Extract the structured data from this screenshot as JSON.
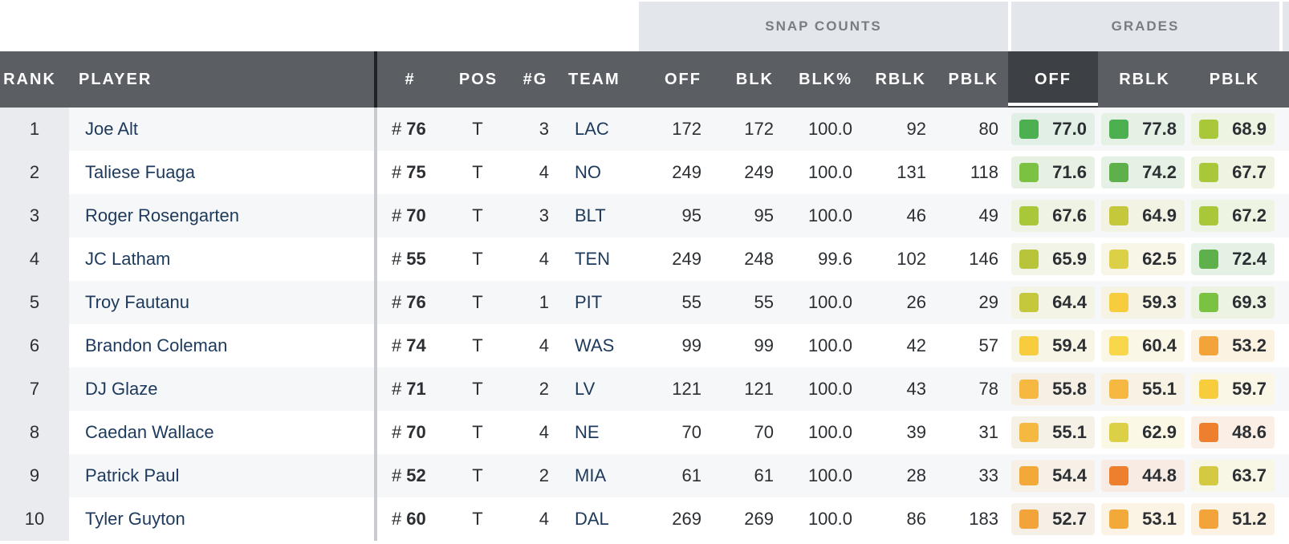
{
  "groups": {
    "snap_counts": "SNAP COUNTS",
    "grades": "GRADES"
  },
  "columns": {
    "rank": "RANK",
    "player": "PLAYER",
    "number": "#",
    "pos": "POS",
    "games": "#G",
    "team": "TEAM",
    "off": "OFF",
    "blk": "BLK",
    "blk_pct": "BLK%",
    "rblk": "RBLK",
    "pblk": "PBLK",
    "grade_off": "OFF",
    "grade_rblk": "RBLK",
    "grade_pblk": "PBLK"
  },
  "number_prefix": "#",
  "grade_colors": {
    "green_dark": "#4caf50",
    "green": "#7cc242",
    "lime": "#a8c83a",
    "olive": "#c4c83a",
    "yellow_olive": "#dcd046",
    "yellow": "#f8cd3d",
    "light_orange": "#f5b942",
    "orange": "#f2a33a",
    "deep_orange": "#ee7f2f"
  },
  "rows": [
    {
      "rank": "1",
      "player": "Joe Alt",
      "number": "76",
      "pos": "T",
      "games": "3",
      "team": "LAC",
      "off": "172",
      "blk": "172",
      "blk_pct": "100.0",
      "rblk": "92",
      "pblk": "80",
      "grades": [
        {
          "value": "77.0",
          "color": "#4caf50",
          "bg": "#e2efe6"
        },
        {
          "value": "77.8",
          "color": "#4caf50",
          "bg": "#e5f1e4"
        },
        {
          "value": "68.9",
          "color": "#a8c83a",
          "bg": "#eef4e2"
        }
      ]
    },
    {
      "rank": "2",
      "player": "Taliese Fuaga",
      "number": "75",
      "pos": "T",
      "games": "4",
      "team": "NO",
      "off": "249",
      "blk": "249",
      "blk_pct": "100.0",
      "rblk": "131",
      "pblk": "118",
      "grades": [
        {
          "value": "71.6",
          "color": "#7cc242",
          "bg": "#e6f1e4"
        },
        {
          "value": "74.2",
          "color": "#5eb14a",
          "bg": "#e5f1e4"
        },
        {
          "value": "67.7",
          "color": "#a8c83a",
          "bg": "#eff4e2"
        }
      ]
    },
    {
      "rank": "3",
      "player": "Roger Rosengarten",
      "number": "70",
      "pos": "T",
      "games": "3",
      "team": "BLT",
      "off": "95",
      "blk": "95",
      "blk_pct": "100.0",
      "rblk": "46",
      "pblk": "49",
      "grades": [
        {
          "value": "67.6",
          "color": "#a8c83a",
          "bg": "#eef3e4"
        },
        {
          "value": "64.9",
          "color": "#c4c83a",
          "bg": "#f3f3e3"
        },
        {
          "value": "67.2",
          "color": "#a8c83a",
          "bg": "#eef4e2"
        }
      ]
    },
    {
      "rank": "4",
      "player": "JC Latham",
      "number": "55",
      "pos": "T",
      "games": "4",
      "team": "TEN",
      "off": "249",
      "blk": "248",
      "blk_pct": "99.6",
      "rblk": "102",
      "pblk": "146",
      "grades": [
        {
          "value": "65.9",
          "color": "#b8c43a",
          "bg": "#f1f4e6"
        },
        {
          "value": "62.5",
          "color": "#dcd046",
          "bg": "#f8f6e6"
        },
        {
          "value": "72.4",
          "color": "#5eb14a",
          "bg": "#e5f1e4"
        }
      ]
    },
    {
      "rank": "5",
      "player": "Troy Fautanu",
      "number": "76",
      "pos": "T",
      "games": "1",
      "team": "PIT",
      "off": "55",
      "blk": "55",
      "blk_pct": "100.0",
      "rblk": "26",
      "pblk": "29",
      "grades": [
        {
          "value": "64.4",
          "color": "#c4c83a",
          "bg": "#f3f3e6"
        },
        {
          "value": "59.3",
          "color": "#f8cd3d",
          "bg": "#f7f3e4"
        },
        {
          "value": "69.3",
          "color": "#7cc242",
          "bg": "#ecf3e2"
        }
      ]
    },
    {
      "rank": "6",
      "player": "Brandon Coleman",
      "number": "74",
      "pos": "T",
      "games": "4",
      "team": "WAS",
      "off": "99",
      "blk": "99",
      "blk_pct": "100.0",
      "rblk": "42",
      "pblk": "57",
      "grades": [
        {
          "value": "59.4",
          "color": "#f8cd3d",
          "bg": "#f7f5e6"
        },
        {
          "value": "60.4",
          "color": "#f8d84a",
          "bg": "#fbf7e6"
        },
        {
          "value": "53.2",
          "color": "#f2a33a",
          "bg": "#fcf2e2"
        }
      ]
    },
    {
      "rank": "7",
      "player": "DJ Glaze",
      "number": "71",
      "pos": "T",
      "games": "2",
      "team": "LV",
      "off": "121",
      "blk": "121",
      "blk_pct": "100.0",
      "rblk": "43",
      "pblk": "78",
      "grades": [
        {
          "value": "55.8",
          "color": "#f5b942",
          "bg": "#f6f0e4"
        },
        {
          "value": "55.1",
          "color": "#f5b942",
          "bg": "#f8f2e4"
        },
        {
          "value": "59.7",
          "color": "#f8cd3d",
          "bg": "#fbf7e6"
        }
      ]
    },
    {
      "rank": "8",
      "player": "Caedan Wallace",
      "number": "70",
      "pos": "T",
      "games": "4",
      "team": "NE",
      "off": "70",
      "blk": "70",
      "blk_pct": "100.0",
      "rblk": "39",
      "pblk": "31",
      "grades": [
        {
          "value": "55.1",
          "color": "#f5b942",
          "bg": "#f6f1e6"
        },
        {
          "value": "62.9",
          "color": "#dcd046",
          "bg": "#fbf8e6"
        },
        {
          "value": "48.6",
          "color": "#ee7f2f",
          "bg": "#fbeee4"
        }
      ]
    },
    {
      "rank": "9",
      "player": "Patrick Paul",
      "number": "52",
      "pos": "T",
      "games": "2",
      "team": "MIA",
      "off": "61",
      "blk": "61",
      "blk_pct": "100.0",
      "rblk": "28",
      "pblk": "33",
      "grades": [
        {
          "value": "54.4",
          "color": "#f2a93a",
          "bg": "#f6f0e6"
        },
        {
          "value": "44.8",
          "color": "#ee7f2f",
          "bg": "#f7ebe4"
        },
        {
          "value": "63.7",
          "color": "#d4ca42",
          "bg": "#f8f6e4"
        }
      ]
    },
    {
      "rank": "10",
      "player": "Tyler Guyton",
      "number": "60",
      "pos": "T",
      "games": "4",
      "team": "DAL",
      "off": "269",
      "blk": "269",
      "blk_pct": "100.0",
      "rblk": "86",
      "pblk": "183",
      "grades": [
        {
          "value": "52.7",
          "color": "#f2a33a",
          "bg": "#f6efe6"
        },
        {
          "value": "53.1",
          "color": "#f2a93a",
          "bg": "#fbf3e4"
        },
        {
          "value": "51.2",
          "color": "#f2a33a",
          "bg": "#fcf2e4"
        }
      ]
    }
  ]
}
